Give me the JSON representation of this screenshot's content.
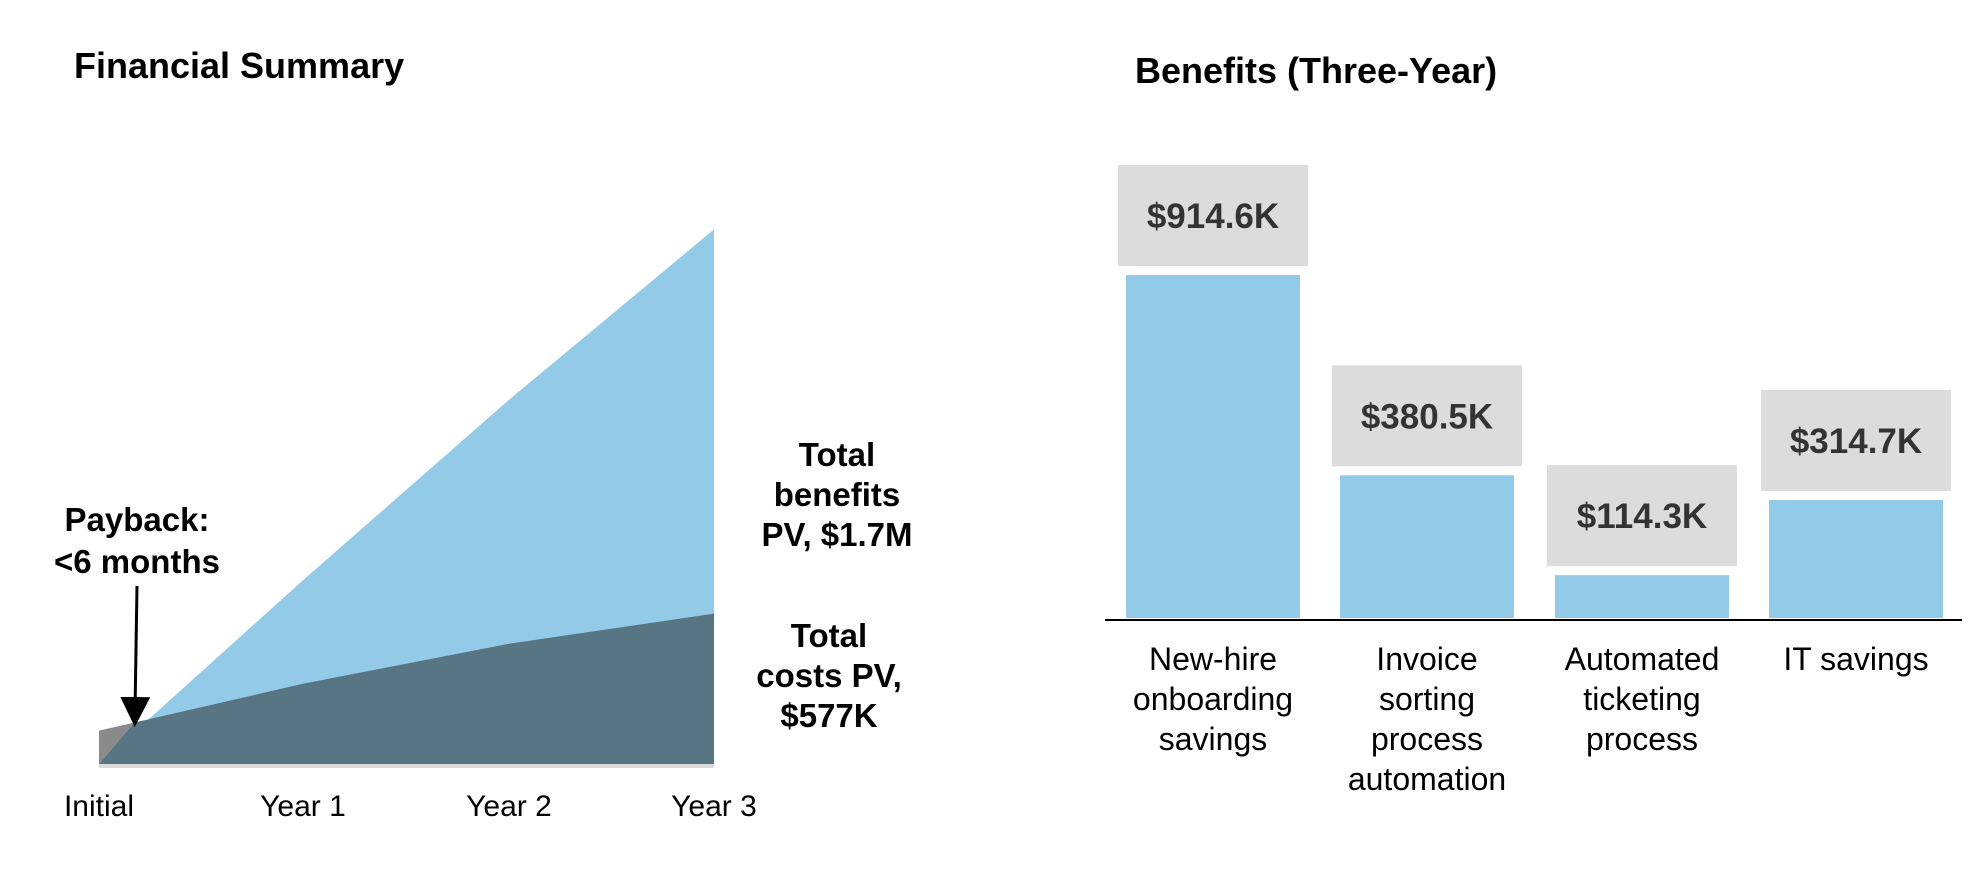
{
  "chart_data": [
    {
      "type": "area",
      "title": "Financial Summary",
      "categories": [
        "Initial",
        "Year 1",
        "Year 2",
        "Year 3"
      ],
      "series": [
        {
          "name": "Total benefits PV, $1.7M",
          "values": [
            0,
            0.55,
            1.09,
            1.6
          ],
          "color": "#93cae8"
        },
        {
          "name": "Total costs PV, $577K",
          "values": [
            0.1,
            0.24,
            0.36,
            0.45
          ],
          "color": "#587583"
        }
      ],
      "initial_color": "#8a8a8a",
      "baseline_color": "#d9d9d9",
      "ylim": [
        0,
        1.7
      ],
      "annotations": {
        "payback_line1": "Payback:",
        "payback_line2": "<6 months",
        "benefits_line1": "Total",
        "benefits_line2": "benefits",
        "benefits_line3": "PV, $1.7M",
        "costs_line1": "Total",
        "costs_line2": "costs PV,",
        "costs_line3": "$577K"
      }
    },
    {
      "type": "bar",
      "title": "Benefits (Three-Year)",
      "categories": [
        [
          "New-hire",
          "onboarding",
          "savings"
        ],
        [
          "Invoice",
          "sorting",
          "process",
          "automation"
        ],
        [
          "Automated",
          "ticketing",
          "process"
        ],
        [
          "IT savings"
        ]
      ],
      "values": [
        914.6,
        380.5,
        114.3,
        314.7
      ],
      "value_labels": [
        "$914.6K",
        "$380.5K",
        "$114.3K",
        "$314.7K"
      ],
      "bar_color": "#93cae8",
      "label_box_color": "#dcdcdc",
      "ylim": [
        0,
        914.6
      ]
    }
  ]
}
